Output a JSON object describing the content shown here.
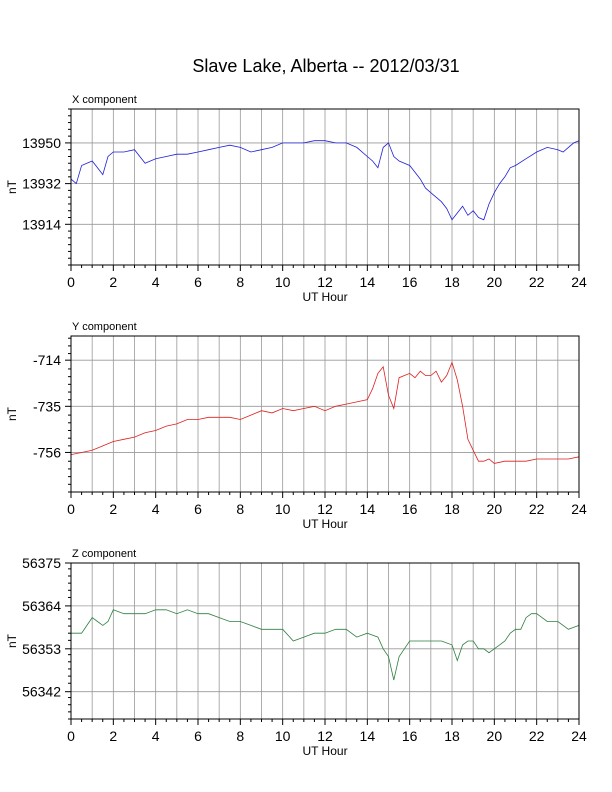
{
  "title": "Slave Lake, Alberta -- 2012/03/31",
  "chart_data": [
    {
      "type": "line",
      "panel_label": "X component",
      "xlabel": "UT Hour",
      "ylabel": "nT",
      "xlim": [
        0,
        24
      ],
      "ylim": [
        13896,
        13965
      ],
      "xticks": [
        0,
        2,
        4,
        6,
        8,
        10,
        12,
        14,
        16,
        18,
        20,
        22,
        24
      ],
      "yticks": [
        13914,
        13932,
        13950
      ],
      "grid": true,
      "color": "#1f1fd8",
      "x": [
        0,
        0.25,
        0.5,
        0.75,
        1,
        1.25,
        1.5,
        1.75,
        2,
        2.5,
        3,
        3.5,
        4,
        4.5,
        5,
        5.5,
        6,
        6.5,
        7,
        7.5,
        8,
        8.5,
        9,
        9.5,
        10,
        10.5,
        11,
        11.5,
        12,
        12.5,
        13,
        13.5,
        14,
        14.25,
        14.5,
        14.75,
        15,
        15.25,
        15.5,
        15.75,
        16,
        16.25,
        16.5,
        16.75,
        17,
        17.25,
        17.5,
        17.75,
        18,
        18.25,
        18.5,
        18.75,
        19,
        19.25,
        19.5,
        19.75,
        20,
        20.25,
        20.5,
        20.75,
        21,
        21.5,
        22,
        22.5,
        23,
        23.25,
        23.5,
        23.75,
        24
      ],
      "y": [
        13934,
        13932,
        13940,
        13941,
        13942,
        13939,
        13936,
        13944,
        13946,
        13946,
        13947,
        13941,
        13943,
        13944,
        13945,
        13945,
        13946,
        13947,
        13948,
        13949,
        13948,
        13946,
        13947,
        13948,
        13950,
        13950,
        13950,
        13951,
        13951,
        13950,
        13950,
        13948,
        13944,
        13942,
        13939,
        13948,
        13950,
        13944,
        13942,
        13941,
        13940,
        13937,
        13934,
        13930,
        13928,
        13926,
        13924,
        13921,
        13916,
        13919,
        13922,
        13918,
        13920,
        13917,
        13916,
        13923,
        13928,
        13932,
        13935,
        13939,
        13940,
        13943,
        13946,
        13948,
        13947,
        13946,
        13948,
        13950,
        13951
      ]
    },
    {
      "type": "line",
      "panel_label": "Y component",
      "xlabel": "UT Hour",
      "ylabel": "nT",
      "xlim": [
        0,
        24
      ],
      "ylim": [
        -774,
        -703
      ],
      "xticks": [
        0,
        2,
        4,
        6,
        8,
        10,
        12,
        14,
        16,
        18,
        20,
        22,
        24
      ],
      "yticks": [
        -714,
        -735,
        -756
      ],
      "grid": true,
      "color": "#e01f1f",
      "x": [
        0,
        0.5,
        1,
        1.5,
        2,
        2.5,
        3,
        3.5,
        4,
        4.5,
        5,
        5.5,
        6,
        6.5,
        7,
        7.5,
        8,
        8.5,
        9,
        9.5,
        10,
        10.5,
        11,
        11.5,
        12,
        12.5,
        13,
        13.5,
        14,
        14.25,
        14.5,
        14.75,
        15,
        15.25,
        15.5,
        15.75,
        16,
        16.25,
        16.5,
        16.75,
        17,
        17.25,
        17.5,
        17.75,
        18,
        18.25,
        18.5,
        18.75,
        19,
        19.25,
        19.5,
        19.75,
        20,
        20.5,
        21,
        21.5,
        22,
        22.5,
        23,
        23.5,
        24
      ],
      "y": [
        -757,
        -756,
        -755,
        -753,
        -751,
        -750,
        -749,
        -747,
        -746,
        -744,
        -743,
        -741,
        -741,
        -740,
        -740,
        -740,
        -741,
        -739,
        -737,
        -738,
        -736,
        -737,
        -736,
        -735,
        -737,
        -735,
        -734,
        -733,
        -732,
        -727,
        -720,
        -717,
        -730,
        -736,
        -722,
        -721,
        -720,
        -722,
        -719,
        -721,
        -721,
        -719,
        -724,
        -721,
        -715,
        -723,
        -735,
        -750,
        -755,
        -760,
        -760,
        -759,
        -761,
        -760,
        -760,
        -760,
        -759,
        -759,
        -759,
        -759,
        -758
      ]
    },
    {
      "type": "line",
      "panel_label": "Z component",
      "xlabel": "UT Hour",
      "ylabel": "nT",
      "xlim": [
        0,
        24
      ],
      "ylim": [
        56335,
        56375
      ],
      "xticks": [
        0,
        2,
        4,
        6,
        8,
        10,
        12,
        14,
        16,
        18,
        20,
        22,
        24
      ],
      "yticks": [
        56342,
        56353,
        56364,
        56375
      ],
      "grid": true,
      "color": "#2f7f3f",
      "x": [
        0,
        0.25,
        0.5,
        0.75,
        1,
        1.25,
        1.5,
        1.75,
        2,
        2.5,
        3,
        3.5,
        4,
        4.5,
        5,
        5.5,
        6,
        6.5,
        7,
        7.5,
        8,
        8.5,
        9,
        9.5,
        10,
        10.5,
        11,
        11.5,
        12,
        12.5,
        13,
        13.5,
        14,
        14.5,
        14.75,
        15,
        15.25,
        15.5,
        15.75,
        16,
        16.5,
        17,
        17.5,
        18,
        18.25,
        18.5,
        18.75,
        19,
        19.25,
        19.5,
        19.75,
        20,
        20.25,
        20.5,
        20.75,
        21,
        21.25,
        21.5,
        21.75,
        22,
        22.5,
        23,
        23.5,
        24
      ],
      "y": [
        56357,
        56357,
        56357,
        56359,
        56361,
        56360,
        56359,
        56360,
        56363,
        56362,
        56362,
        56362,
        56363,
        56363,
        56362,
        56363,
        56362,
        56362,
        56361,
        56360,
        56360,
        56359,
        56358,
        56358,
        56358,
        56355,
        56356,
        56357,
        56357,
        56358,
        56358,
        56356,
        56357,
        56356,
        56353,
        56351,
        56345,
        56351,
        56353,
        56355,
        56355,
        56355,
        56355,
        56354,
        56350,
        56354,
        56355,
        56355,
        56353,
        56353,
        56352,
        56353,
        56354,
        56355,
        56357,
        56358,
        56358,
        56361,
        56362,
        56362,
        56360,
        56360,
        56358,
        56359
      ]
    }
  ]
}
